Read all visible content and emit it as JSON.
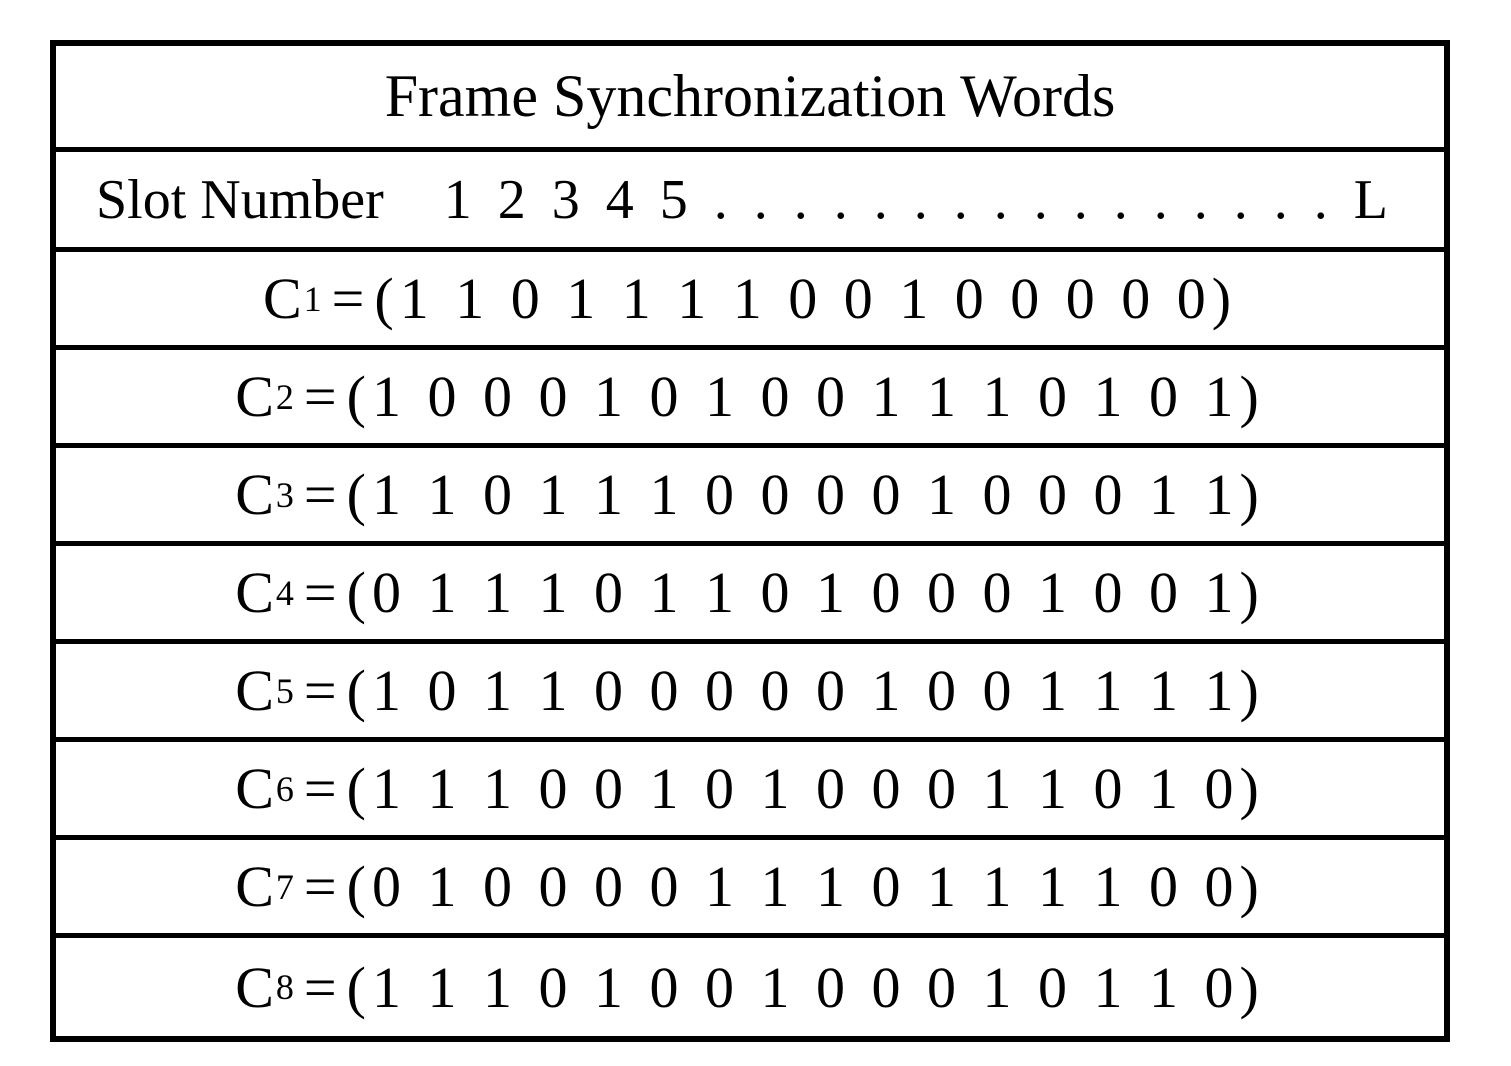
{
  "table": {
    "title": "Frame Synchronization Words",
    "slot": {
      "label": "Slot Number",
      "digits": "1 2 3 4 5 . . . . . . . . . . . . . . . . L"
    },
    "border_color": "#000000",
    "background_color": "#ffffff",
    "text_color": "#000000",
    "font_family": "serif",
    "title_fontsize": 60,
    "row_fontsize": 58,
    "subscript_fontsize": 36,
    "codes": [
      {
        "name": "C",
        "sub": "1",
        "bits": "(1 1 0 1 1 1 1 0 0 1 0 0 0 0 0)"
      },
      {
        "name": "C",
        "sub": "2",
        "bits": "(1 0 0 0 1 0 1 0 0 1 1 1 0 1 0 1)"
      },
      {
        "name": "C",
        "sub": "3",
        "bits": "(1 1 0 1 1 1 0 0 0 0 1 0 0 0 1 1)"
      },
      {
        "name": "C",
        "sub": "4",
        "bits": "(0 1 1 1 0 1 1 0 1 0 0 0 1 0 0 1)"
      },
      {
        "name": "C",
        "sub": "5",
        "bits": "(1 0 1 1 0 0 0 0 0 1 0 0 1 1 1 1)"
      },
      {
        "name": "C",
        "sub": "6",
        "bits": "(1 1 1 0 0 1 0 1 0 0 0 1 1 0 1 0)"
      },
      {
        "name": "C",
        "sub": "7",
        "bits": "(0 1 0 0 0 0 1 1 1 0 1 1 1 1 0 0)"
      },
      {
        "name": "C",
        "sub": "8",
        "bits": "(1 1 1 0 1 0 0 1 0 0 0 1 0 1 1 0)"
      }
    ]
  }
}
